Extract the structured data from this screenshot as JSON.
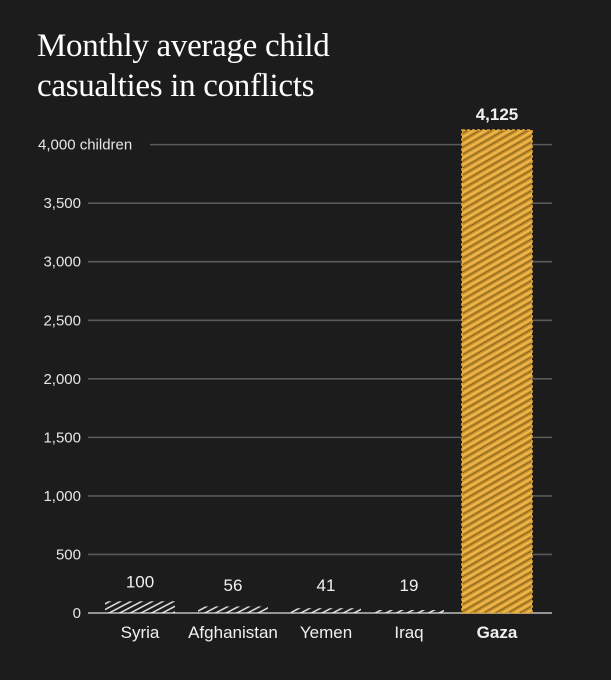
{
  "colors": {
    "background": "#1c1c1c",
    "grid": "#5a5a5a",
    "bar_default": "#e8e8e8",
    "highlight": "#e1a636",
    "text": "#e8e8e8"
  },
  "chart_data": {
    "type": "bar",
    "title": "Monthly average child casualties in conflicts",
    "title_lines": [
      "Monthly average child",
      "casualties in conflicts"
    ],
    "ylabel": "",
    "xlabel": "",
    "y_unit_suffix": " children",
    "ylim": [
      0,
      4125
    ],
    "yticks": [
      0,
      500,
      1000,
      1500,
      2000,
      2500,
      3000,
      3500,
      4000
    ],
    "ytick_labels": [
      "0",
      "500",
      "1,000",
      "1,500",
      "2,000",
      "2,500",
      "3,000",
      "3,500",
      "4,000"
    ],
    "top_tick_label": "4,000 children",
    "grid": true,
    "categories": [
      "Syria",
      "Afghanistan",
      "Yemen",
      "Iraq",
      "Gaza"
    ],
    "values": [
      100,
      56,
      41,
      19,
      4125
    ],
    "value_labels": [
      "100",
      "56",
      "41",
      "19",
      "4,125"
    ],
    "highlight_category": "Gaza"
  }
}
